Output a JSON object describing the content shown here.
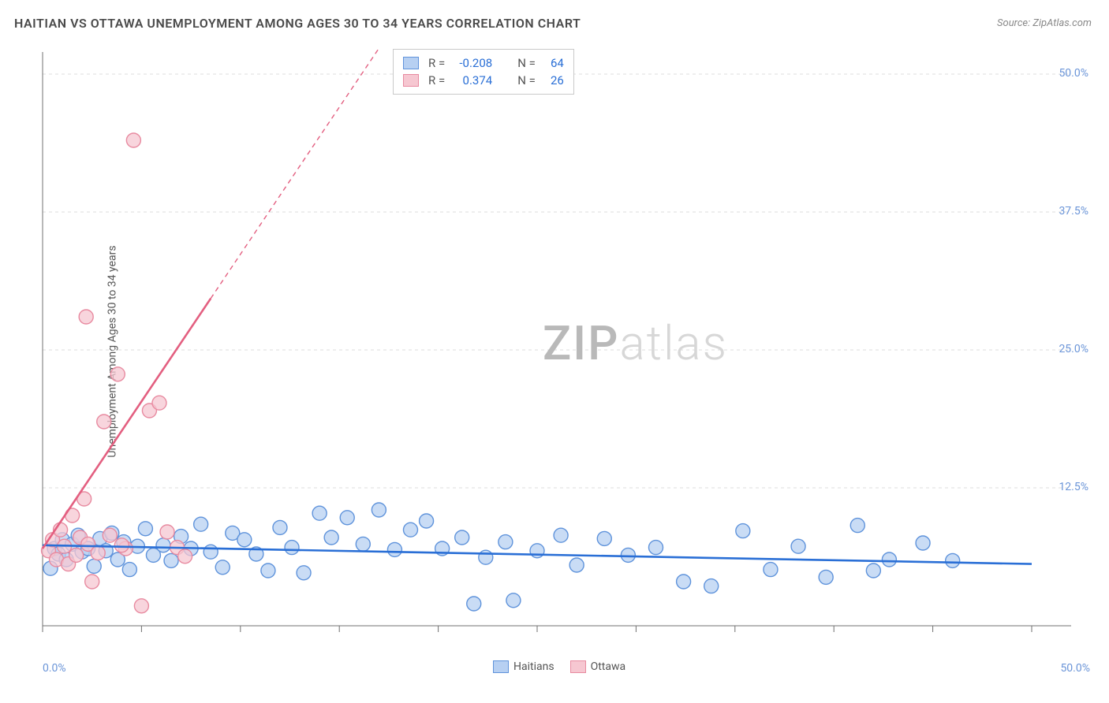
{
  "title": "HAITIAN VS OTTAWA UNEMPLOYMENT AMONG AGES 30 TO 34 YEARS CORRELATION CHART",
  "source": "Source: ZipAtlas.com",
  "ylabel": "Unemployment Among Ages 30 to 34 years",
  "watermark_a": "ZIP",
  "watermark_b": "atlas",
  "chart": {
    "type": "scatter",
    "background_color": "#ffffff",
    "grid_color": "#dcdcdc",
    "axis_color": "#707070",
    "tick_label_color": "#6b95d8",
    "xlim": [
      0,
      50
    ],
    "ylim": [
      0,
      52
    ],
    "x_ticks": [
      0,
      5,
      10,
      15,
      20,
      25,
      30,
      35,
      40,
      45,
      50
    ],
    "x_tick_labels": {
      "0": "0.0%",
      "50": "50.0%"
    },
    "y_right_ticks": [
      12.5,
      25.0,
      37.5,
      50.0
    ],
    "y_right_labels": [
      "12.5%",
      "25.0%",
      "37.5%",
      "50.0%"
    ],
    "marker_radius": 9,
    "marker_stroke_width": 1.4,
    "trend_line_width": 2.6,
    "trend_dash": "6,5",
    "series": [
      {
        "name": "Haitians",
        "fill": "#b7d0f2",
        "stroke": "#5f93db",
        "trend_color": "#2a6fd6",
        "R": "-0.208",
        "N": "64",
        "trend": {
          "x0": 0,
          "y0": 7.3,
          "x1": 50,
          "y1": 5.6,
          "solid_to_x": 50
        },
        "points": [
          [
            0.4,
            5.2
          ],
          [
            0.6,
            7.0
          ],
          [
            0.8,
            6.5
          ],
          [
            1.0,
            7.8
          ],
          [
            1.2,
            6.0
          ],
          [
            1.5,
            7.4
          ],
          [
            1.8,
            8.2
          ],
          [
            2.0,
            6.7
          ],
          [
            2.3,
            7.0
          ],
          [
            2.6,
            5.4
          ],
          [
            2.9,
            7.9
          ],
          [
            3.2,
            6.8
          ],
          [
            3.5,
            8.4
          ],
          [
            3.8,
            6.0
          ],
          [
            4.1,
            7.6
          ],
          [
            4.4,
            5.1
          ],
          [
            4.8,
            7.2
          ],
          [
            5.2,
            8.8
          ],
          [
            5.6,
            6.4
          ],
          [
            6.1,
            7.3
          ],
          [
            6.5,
            5.9
          ],
          [
            7.0,
            8.1
          ],
          [
            7.5,
            7.0
          ],
          [
            8.0,
            9.2
          ],
          [
            8.5,
            6.7
          ],
          [
            9.1,
            5.3
          ],
          [
            9.6,
            8.4
          ],
          [
            10.2,
            7.8
          ],
          [
            10.8,
            6.5
          ],
          [
            11.4,
            5.0
          ],
          [
            12.0,
            8.9
          ],
          [
            12.6,
            7.1
          ],
          [
            13.2,
            4.8
          ],
          [
            14.0,
            10.2
          ],
          [
            14.6,
            8.0
          ],
          [
            15.4,
            9.8
          ],
          [
            16.2,
            7.4
          ],
          [
            17.0,
            10.5
          ],
          [
            17.8,
            6.9
          ],
          [
            18.6,
            8.7
          ],
          [
            19.4,
            9.5
          ],
          [
            20.2,
            7.0
          ],
          [
            21.2,
            8.0
          ],
          [
            21.8,
            2.0
          ],
          [
            22.4,
            6.2
          ],
          [
            23.4,
            7.6
          ],
          [
            23.8,
            2.3
          ],
          [
            25.0,
            6.8
          ],
          [
            26.2,
            8.2
          ],
          [
            27.0,
            5.5
          ],
          [
            28.4,
            7.9
          ],
          [
            29.6,
            6.4
          ],
          [
            31.0,
            7.1
          ],
          [
            32.4,
            4.0
          ],
          [
            33.8,
            3.6
          ],
          [
            35.4,
            8.6
          ],
          [
            36.8,
            5.1
          ],
          [
            38.2,
            7.2
          ],
          [
            39.6,
            4.4
          ],
          [
            41.2,
            9.1
          ],
          [
            42.0,
            5.0
          ],
          [
            42.8,
            6.0
          ],
          [
            44.5,
            7.5
          ],
          [
            46.0,
            5.9
          ]
        ]
      },
      {
        "name": "Ottawa",
        "fill": "#f6c7d1",
        "stroke": "#e88aa0",
        "trend_color": "#e35f80",
        "R": "0.374",
        "N": "26",
        "trend": {
          "x0": 0,
          "y0": 7.0,
          "x1": 18,
          "y1": 55.0,
          "solid_to_x": 8.5
        },
        "points": [
          [
            0.3,
            6.8
          ],
          [
            0.5,
            7.8
          ],
          [
            0.7,
            6.0
          ],
          [
            0.9,
            8.7
          ],
          [
            1.1,
            7.2
          ],
          [
            1.3,
            5.6
          ],
          [
            1.5,
            10.0
          ],
          [
            1.7,
            6.4
          ],
          [
            1.9,
            8.0
          ],
          [
            2.1,
            11.5
          ],
          [
            2.3,
            7.4
          ],
          [
            2.5,
            4.0
          ],
          [
            2.8,
            6.6
          ],
          [
            3.1,
            18.5
          ],
          [
            3.4,
            8.2
          ],
          [
            3.8,
            22.8
          ],
          [
            4.2,
            7.0
          ],
          [
            4.6,
            44.0
          ],
          [
            5.0,
            1.8
          ],
          [
            5.4,
            19.5
          ],
          [
            5.9,
            20.2
          ],
          [
            6.3,
            8.5
          ],
          [
            6.8,
            7.1
          ],
          [
            7.2,
            6.3
          ],
          [
            2.2,
            28.0
          ],
          [
            4.0,
            7.3
          ]
        ]
      }
    ]
  },
  "stat_box": {
    "R_label": "R =",
    "N_label": "N ="
  },
  "legend": [
    {
      "label": "Haitians",
      "fill": "#b7d0f2",
      "stroke": "#5f93db"
    },
    {
      "label": "Ottawa",
      "fill": "#f6c7d1",
      "stroke": "#e88aa0"
    }
  ]
}
